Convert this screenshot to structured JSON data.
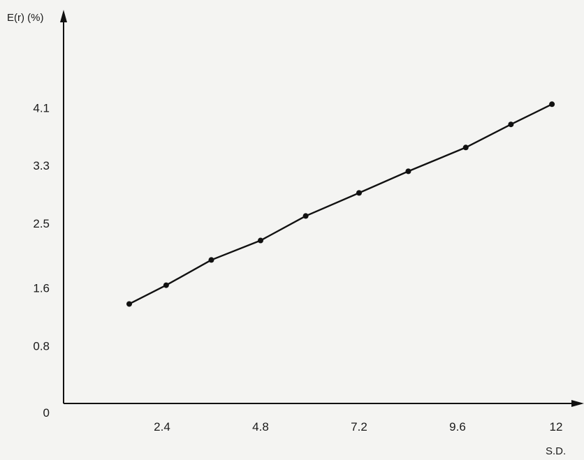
{
  "chart_data": {
    "type": "line",
    "title": "",
    "ylabel": "E(r) (%)",
    "xlabel": "S.D.",
    "origin_label": "0",
    "xlim": [
      0,
      12.4
    ],
    "ylim": [
      0,
      4.6
    ],
    "xticks": [
      {
        "value": 2.4,
        "label": "2.4"
      },
      {
        "value": 4.8,
        "label": "4.8"
      },
      {
        "value": 7.2,
        "label": "7.2"
      },
      {
        "value": 9.6,
        "label": "9.6"
      },
      {
        "value": 12,
        "label": "12"
      }
    ],
    "yticks": [
      {
        "value": 0.8,
        "label": "0.8"
      },
      {
        "value": 1.6,
        "label": "1.6"
      },
      {
        "value": 2.5,
        "label": "2.5"
      },
      {
        "value": 3.3,
        "label": "3.3"
      },
      {
        "value": 4.1,
        "label": "4.1"
      }
    ],
    "grid": false,
    "series": [
      {
        "color": "#111111",
        "points": [
          {
            "x": 1.6,
            "y": 1.38
          },
          {
            "x": 2.5,
            "y": 1.64
          },
          {
            "x": 3.6,
            "y": 1.99
          },
          {
            "x": 4.8,
            "y": 2.26
          },
          {
            "x": 5.9,
            "y": 2.6
          },
          {
            "x": 7.2,
            "y": 2.92
          },
          {
            "x": 8.4,
            "y": 3.22
          },
          {
            "x": 9.8,
            "y": 3.55
          },
          {
            "x": 10.9,
            "y": 3.87
          },
          {
            "x": 11.9,
            "y": 4.15
          }
        ]
      }
    ]
  }
}
